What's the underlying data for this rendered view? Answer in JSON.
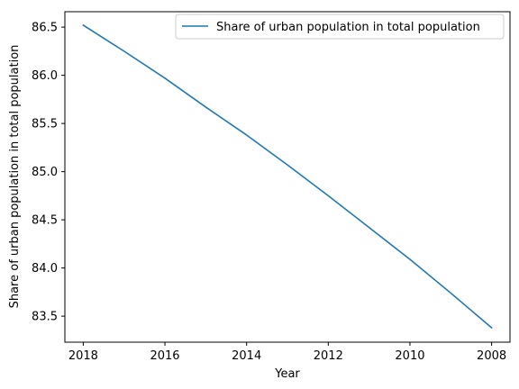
{
  "chart_data": {
    "type": "line",
    "title": "",
    "xlabel": "Year",
    "ylabel": "Share of urban population in total population",
    "x": [
      2018,
      2017,
      2016,
      2015,
      2014,
      2013,
      2012,
      2011,
      2010,
      2009,
      2008
    ],
    "series": [
      {
        "name": "Share of urban population in total population",
        "color": "#1f77b4",
        "values": [
          86.52,
          86.25,
          85.97,
          85.67,
          85.38,
          85.07,
          84.75,
          84.42,
          84.09,
          83.74,
          83.38
        ]
      }
    ],
    "xlim": [
      2018.45,
      2007.55
    ],
    "ylim": [
      83.23,
      86.66
    ],
    "x_reversed": true,
    "xticks": [
      "2018",
      "2016",
      "2014",
      "2012",
      "2010",
      "2008"
    ],
    "yticks": [
      "83.5",
      "84.0",
      "84.5",
      "85.0",
      "85.5",
      "86.0",
      "86.5"
    ],
    "grid": false,
    "legend_position": "top-right"
  }
}
